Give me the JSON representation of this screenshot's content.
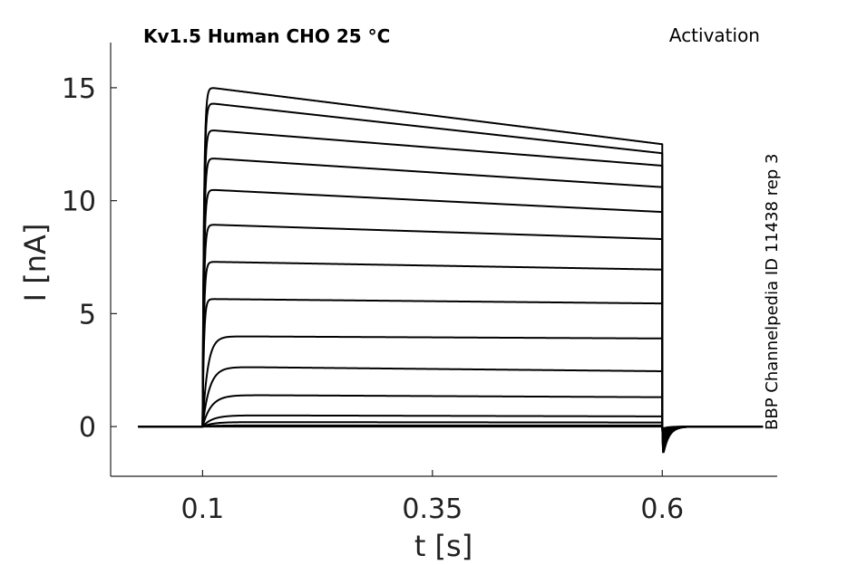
{
  "chart_data": {
    "type": "line",
    "title": "Kv1.5  Human  CHO  25 °C",
    "protocol": "Activation",
    "source_label": "BBP Channelpedia ID 11438 rep 3",
    "xlabel": "t [s]",
    "ylabel": "I [nA]",
    "xlim": [
      0.0,
      0.725
    ],
    "ylim": [
      -2.2,
      17.0
    ],
    "x_ticks": [
      0.1,
      0.35,
      0.6
    ],
    "x_tick_labels": [
      "0.1",
      "0.35",
      "0.6"
    ],
    "y_ticks": [
      0,
      5,
      10,
      15
    ],
    "y_tick_labels": [
      "0",
      "5",
      "10",
      "15"
    ],
    "grid": false,
    "step_on": 0.1,
    "step_off": 0.6,
    "trace_start": 0.03,
    "trace_end": 0.71,
    "series": [
      {
        "peak": 0.0,
        "end": 0.0
      },
      {
        "peak": 0.02,
        "end": 0.02
      },
      {
        "peak": 0.05,
        "end": 0.05
      },
      {
        "peak": 0.2,
        "end": 0.18
      },
      {
        "peak": 0.5,
        "end": 0.45
      },
      {
        "peak": 1.4,
        "end": 1.3
      },
      {
        "peak": 2.65,
        "end": 2.45
      },
      {
        "peak": 4.0,
        "end": 3.9
      },
      {
        "peak": 5.65,
        "end": 5.45
      },
      {
        "peak": 7.3,
        "end": 6.95
      },
      {
        "peak": 8.95,
        "end": 8.3
      },
      {
        "peak": 10.5,
        "end": 9.5
      },
      {
        "peak": 11.9,
        "end": 10.6
      },
      {
        "peak": 13.15,
        "end": 11.55
      },
      {
        "peak": 14.35,
        "end": 12.1
      },
      {
        "peak": 15.05,
        "end": 12.5
      }
    ],
    "tail_current_min": -1.5
  }
}
